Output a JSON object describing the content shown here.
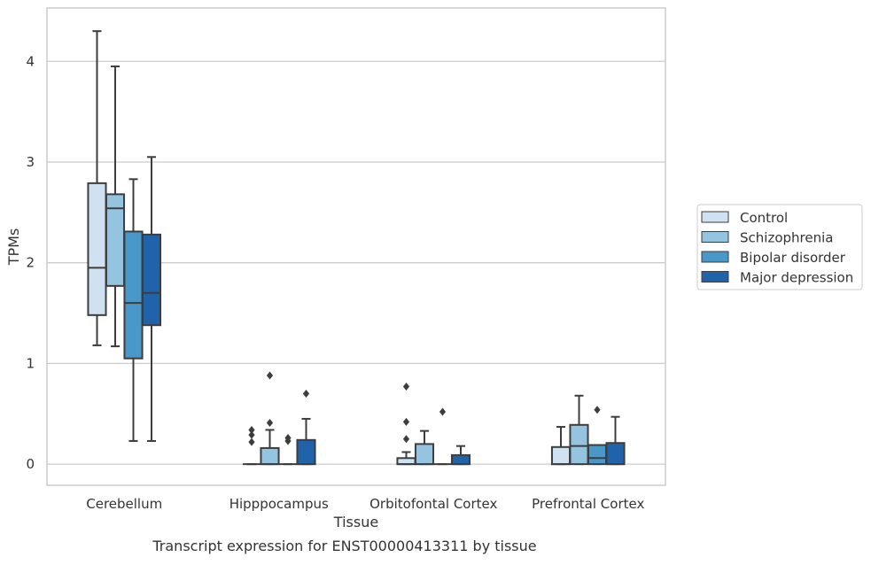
{
  "chart_data": {
    "type": "boxplot",
    "title": "",
    "caption": "Transcript expression for ENST00000413311 by tissue",
    "xlabel": "Tissue",
    "ylabel": "TPMs",
    "ylim": [
      -0.21,
      4.53
    ],
    "yticks": [
      0,
      1,
      2,
      3,
      4
    ],
    "grid": "horizontal",
    "legend_position": "right",
    "categories": [
      "Cerebellum",
      "Hipppocampus",
      "Orbitofontal Cortex",
      "Prefrontal Cortex"
    ],
    "series": [
      {
        "name": "Control",
        "color": "#d0e1f2",
        "boxes": [
          {
            "whisker_low": 1.18,
            "q1": 1.48,
            "median": 1.95,
            "q3": 2.79,
            "whisker_high": 4.3,
            "outliers": []
          },
          {
            "whisker_low": 0.0,
            "q1": 0.0,
            "median": 0.0,
            "q3": 0.0,
            "whisker_high": 0.0,
            "outliers": [
              0.22,
              0.29,
              0.34
            ]
          },
          {
            "whisker_low": 0.0,
            "q1": 0.0,
            "median": 0.0,
            "q3": 0.06,
            "whisker_high": 0.12,
            "outliers": [
              0.25,
              0.42,
              0.77
            ]
          },
          {
            "whisker_low": 0.0,
            "q1": 0.0,
            "median": 0.0,
            "q3": 0.17,
            "whisker_high": 0.37,
            "outliers": []
          }
        ]
      },
      {
        "name": "Schizophrenia",
        "color": "#94c4df",
        "boxes": [
          {
            "whisker_low": 1.17,
            "q1": 1.77,
            "median": 2.54,
            "q3": 2.68,
            "whisker_high": 3.95,
            "outliers": []
          },
          {
            "whisker_low": 0.0,
            "q1": 0.0,
            "median": 0.0,
            "q3": 0.16,
            "whisker_high": 0.34,
            "outliers": [
              0.41,
              0.88
            ]
          },
          {
            "whisker_low": 0.0,
            "q1": 0.0,
            "median": 0.0,
            "q3": 0.2,
            "whisker_high": 0.33,
            "outliers": []
          },
          {
            "whisker_low": 0.0,
            "q1": 0.0,
            "median": 0.18,
            "q3": 0.39,
            "whisker_high": 0.68,
            "outliers": []
          }
        ]
      },
      {
        "name": "Bipolar disorder",
        "color": "#4a98c9",
        "boxes": [
          {
            "whisker_low": 0.23,
            "q1": 1.05,
            "median": 1.6,
            "q3": 2.31,
            "whisker_high": 2.83,
            "outliers": []
          },
          {
            "whisker_low": 0.0,
            "q1": 0.0,
            "median": 0.0,
            "q3": 0.0,
            "whisker_high": 0.0,
            "outliers": [
              0.23,
              0.26
            ]
          },
          {
            "whisker_low": 0.0,
            "q1": 0.0,
            "median": 0.0,
            "q3": 0.0,
            "whisker_high": 0.0,
            "outliers": [
              0.52
            ]
          },
          {
            "whisker_low": 0.0,
            "q1": 0.0,
            "median": 0.06,
            "q3": 0.19,
            "whisker_high": 0.19,
            "outliers": [
              0.54
            ]
          }
        ]
      },
      {
        "name": "Major depression",
        "color": "#2163aa",
        "boxes": [
          {
            "whisker_low": 0.23,
            "q1": 1.38,
            "median": 1.7,
            "q3": 2.28,
            "whisker_high": 3.05,
            "outliers": []
          },
          {
            "whisker_low": 0.0,
            "q1": 0.0,
            "median": 0.0,
            "q3": 0.24,
            "whisker_high": 0.45,
            "outliers": [
              0.7
            ]
          },
          {
            "whisker_low": 0.0,
            "q1": 0.0,
            "median": 0.0,
            "q3": 0.09,
            "whisker_high": 0.18,
            "outliers": []
          },
          {
            "whisker_low": 0.0,
            "q1": 0.0,
            "median": 0.0,
            "q3": 0.21,
            "whisker_high": 0.47,
            "outliers": []
          }
        ]
      }
    ]
  }
}
